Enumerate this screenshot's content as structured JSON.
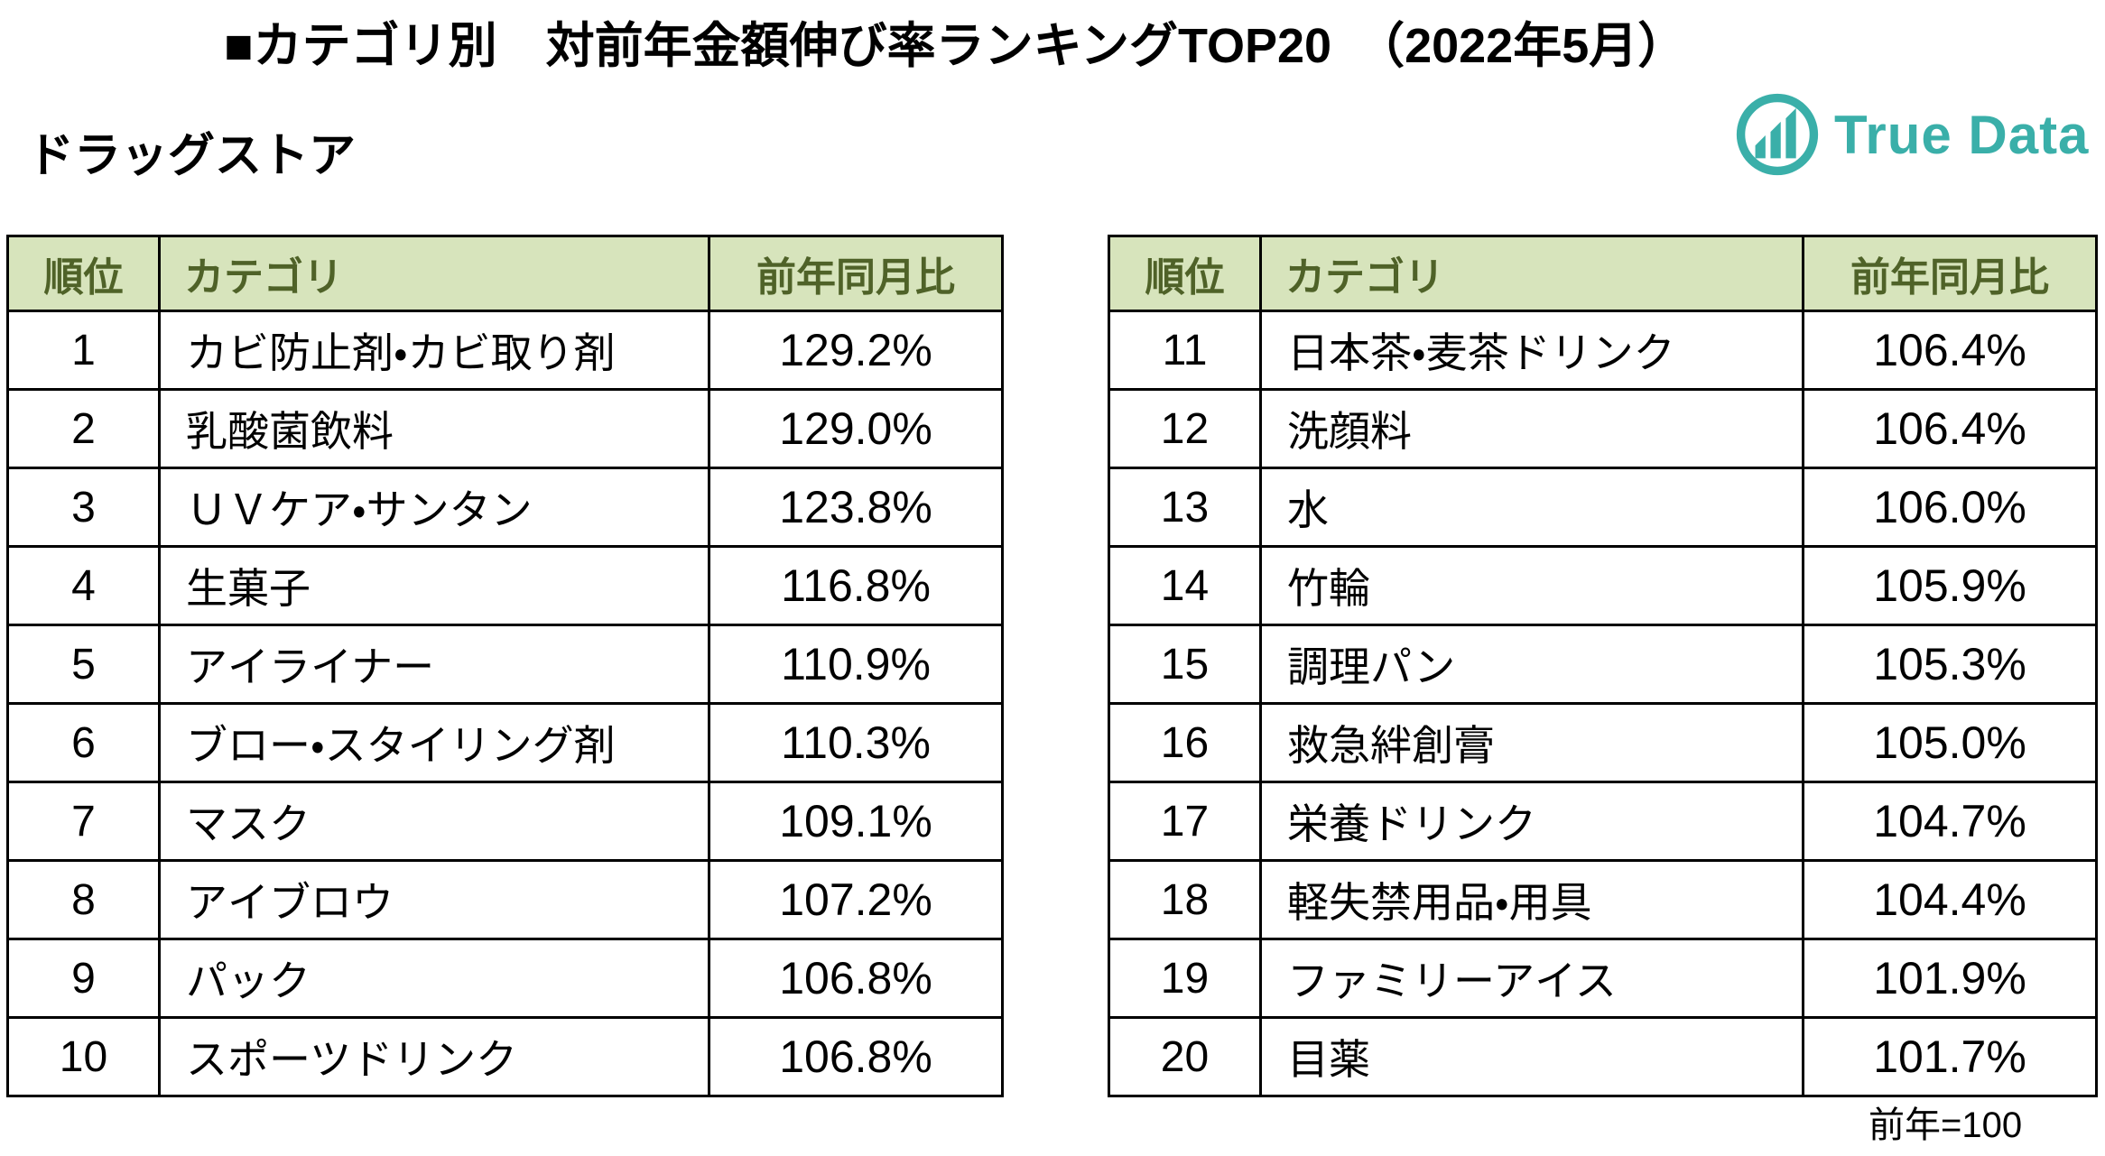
{
  "title": "■カテゴリ別　対前年金額伸び率ランキングTOP20　（2022年5月）",
  "subtitle": "ドラッグストア",
  "footnote": "前年=100",
  "logo": {
    "text": "True Data",
    "icon": "bar-chart-circle-icon",
    "color": "#3AAFA9"
  },
  "colors": {
    "header_bg": "#D7E4BC",
    "header_text": "#4F6228",
    "border": "#000000",
    "body_text": "#000000",
    "page_bg": "#FFFFFF",
    "brand_teal": "#3AAFA9"
  },
  "headers": {
    "rank": "順位",
    "category": "カテゴリ",
    "value": "前年同月比"
  },
  "tables": [
    {
      "name": "ranks-1-10",
      "rows": [
        {
          "rank": "1",
          "category": "カビ防止剤・カビ取り剤",
          "value": "129.2%"
        },
        {
          "rank": "2",
          "category": "乳酸菌飲料",
          "value": "129.0%"
        },
        {
          "rank": "3",
          "category": "ＵＶケア・サンタン",
          "value": "123.8%"
        },
        {
          "rank": "4",
          "category": "生菓子",
          "value": "116.8%"
        },
        {
          "rank": "5",
          "category": "アイライナー",
          "value": "110.9%"
        },
        {
          "rank": "6",
          "category": "ブロー・スタイリング剤",
          "value": "110.3%"
        },
        {
          "rank": "7",
          "category": "マスク",
          "value": "109.1%"
        },
        {
          "rank": "8",
          "category": "アイブロウ",
          "value": "107.2%"
        },
        {
          "rank": "9",
          "category": "パック",
          "value": "106.8%"
        },
        {
          "rank": "10",
          "category": "スポーツドリンク",
          "value": "106.8%"
        }
      ]
    },
    {
      "name": "ranks-11-20",
      "rows": [
        {
          "rank": "11",
          "category": "日本茶・麦茶ドリンク",
          "value": "106.4%"
        },
        {
          "rank": "12",
          "category": "洗顔料",
          "value": "106.4%"
        },
        {
          "rank": "13",
          "category": "水",
          "value": "106.0%"
        },
        {
          "rank": "14",
          "category": "竹輪",
          "value": "105.9%"
        },
        {
          "rank": "15",
          "category": "調理パン",
          "value": "105.3%"
        },
        {
          "rank": "16",
          "category": "救急絆創膏",
          "value": "105.0%"
        },
        {
          "rank": "17",
          "category": "栄養ドリンク",
          "value": "104.7%"
        },
        {
          "rank": "18",
          "category": "軽失禁用品・用具",
          "value": "104.4%"
        },
        {
          "rank": "19",
          "category": "ファミリーアイス",
          "value": "101.9%"
        },
        {
          "rank": "20",
          "category": "目薬",
          "value": "101.7%"
        }
      ]
    }
  ],
  "chart_data": {
    "type": "table",
    "title": "■カテゴリ別　対前年金額伸び率ランキングTOP20　（2022年5月）",
    "subtitle": "ドラッグストア",
    "columns": [
      "順位",
      "カテゴリ",
      "前年同月比"
    ],
    "rows": [
      [
        1,
        "カビ防止剤・カビ取り剤",
        129.2
      ],
      [
        2,
        "乳酸菌飲料",
        129.0
      ],
      [
        3,
        "ＵＶケア・サンタン",
        123.8
      ],
      [
        4,
        "生菓子",
        116.8
      ],
      [
        5,
        "アイライナー",
        110.9
      ],
      [
        6,
        "ブロー・スタイリング剤",
        110.3
      ],
      [
        7,
        "マスク",
        109.1
      ],
      [
        8,
        "アイブロウ",
        107.2
      ],
      [
        9,
        "パック",
        106.8
      ],
      [
        10,
        "スポーツドリンク",
        106.8
      ],
      [
        11,
        "日本茶・麦茶ドリンク",
        106.4
      ],
      [
        12,
        "洗顔料",
        106.4
      ],
      [
        13,
        "水",
        106.0
      ],
      [
        14,
        "竹輪",
        105.9
      ],
      [
        15,
        "調理パン",
        105.3
      ],
      [
        16,
        "救急絆創膏",
        105.0
      ],
      [
        17,
        "栄養ドリンク",
        104.7
      ],
      [
        18,
        "軽失禁用品・用具",
        104.4
      ],
      [
        19,
        "ファミリーアイス",
        101.9
      ],
      [
        20,
        "目薬",
        101.7
      ]
    ],
    "note": "前年=100",
    "layout": "two side-by-side tables (ranks 1-10 left, 11-20 right)"
  }
}
